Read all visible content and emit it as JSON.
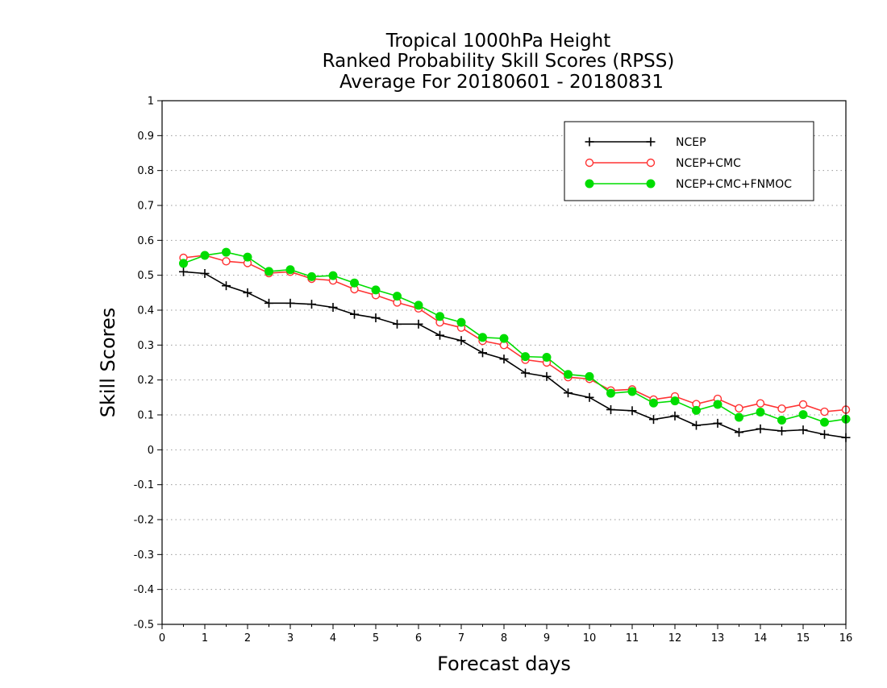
{
  "chart_data": {
    "type": "line",
    "title": [
      "Tropical 1000hPa Height",
      "Ranked Probability Skill Scores (RPSS)",
      "Average For 20180601 - 20180831"
    ],
    "xlabel": "Forecast days",
    "ylabel": "Skill Scores",
    "xlim": [
      0,
      16
    ],
    "ylim": [
      -0.5,
      1
    ],
    "x_ticks": [
      0,
      1,
      2,
      3,
      4,
      5,
      6,
      7,
      8,
      9,
      10,
      11,
      12,
      13,
      14,
      15,
      16
    ],
    "x_tick_labels": [
      "0",
      "1",
      "2",
      "3",
      "4",
      "5",
      "6",
      "7",
      "8",
      "9",
      "10",
      "11",
      "12",
      "13",
      "14",
      "15",
      "16"
    ],
    "y_ticks": [
      -0.5,
      -0.4,
      -0.3,
      -0.2,
      -0.1,
      0,
      0.1,
      0.2,
      0.3,
      0.4,
      0.5,
      0.6,
      0.7,
      0.8,
      0.9,
      1
    ],
    "y_tick_labels": [
      "-0.5",
      "-0.4",
      "-0.3",
      "-0.2",
      "-0.1",
      "0",
      "0.1",
      "0.2",
      "0.3",
      "0.4",
      "0.5",
      "0.6",
      "0.7",
      "0.8",
      "0.9",
      "1"
    ],
    "grid": true,
    "grid_style": "dotted horizontal",
    "legend_position": "top-right",
    "x": [
      0.5,
      1.0,
      1.5,
      2.0,
      2.5,
      3.0,
      3.5,
      4.0,
      4.5,
      5.0,
      5.5,
      6.0,
      6.5,
      7.0,
      7.5,
      8.0,
      8.5,
      9.0,
      9.5,
      10.0,
      10.5,
      11.0,
      11.5,
      12.0,
      12.5,
      13.0,
      13.5,
      14.0,
      14.5,
      15.0,
      15.5,
      16.0
    ],
    "series": [
      {
        "name": "NCEP",
        "color": "#000000",
        "marker": "plus",
        "values": [
          0.51,
          0.505,
          0.47,
          0.45,
          0.42,
          0.42,
          0.417,
          0.408,
          0.388,
          0.378,
          0.36,
          0.36,
          0.328,
          0.313,
          0.278,
          0.26,
          0.22,
          0.21,
          0.163,
          0.15,
          0.115,
          0.112,
          0.087,
          0.097,
          0.07,
          0.076,
          0.05,
          0.06,
          0.054,
          0.057,
          0.044,
          0.035
        ]
      },
      {
        "name": "NCEP+CMC",
        "color": "#ff3333",
        "marker": "open-circle",
        "values": [
          0.55,
          0.557,
          0.54,
          0.535,
          0.506,
          0.51,
          0.49,
          0.485,
          0.46,
          0.443,
          0.422,
          0.405,
          0.365,
          0.35,
          0.312,
          0.3,
          0.258,
          0.25,
          0.208,
          0.203,
          0.17,
          0.173,
          0.144,
          0.153,
          0.131,
          0.146,
          0.119,
          0.133,
          0.118,
          0.13,
          0.109,
          0.115
        ]
      },
      {
        "name": "NCEP+CMC+FNMOC",
        "color": "#00dd00",
        "marker": "filled-circle",
        "values": [
          0.534,
          0.557,
          0.566,
          0.552,
          0.511,
          0.516,
          0.496,
          0.499,
          0.478,
          0.458,
          0.44,
          0.414,
          0.382,
          0.365,
          0.322,
          0.319,
          0.267,
          0.265,
          0.216,
          0.21,
          0.162,
          0.167,
          0.134,
          0.14,
          0.113,
          0.13,
          0.093,
          0.108,
          0.085,
          0.101,
          0.079,
          0.088
        ]
      }
    ]
  }
}
